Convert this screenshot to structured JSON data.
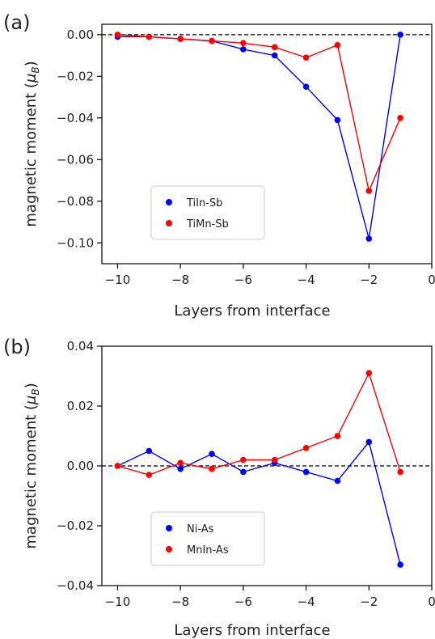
{
  "chart_data": [
    {
      "type": "line",
      "panel_label": "(a)",
      "xlabel": "Layers from interface",
      "ylabel": "magnetic moment (",
      "ylabel_symbol": "μ",
      "ylabel_subscript": "B",
      "ylabel_close": ")",
      "xlim": [
        -10.5,
        0
      ],
      "ylim": [
        -0.11,
        0.005
      ],
      "xticks": [
        -10,
        -8,
        -6,
        -4,
        -2,
        0
      ],
      "xtick_labels": [
        "−10",
        "−8",
        "−6",
        "−4",
        "−2",
        "0"
      ],
      "yticks": [
        0.0,
        -0.02,
        -0.04,
        -0.06,
        -0.08,
        -0.1
      ],
      "ytick_labels": [
        "0.00",
        "−0.02",
        "−0.04",
        "−0.06",
        "−0.08",
        "−0.10"
      ],
      "reference_line": 0,
      "legend_position": "lower-left",
      "series": [
        {
          "name": "TiIn-Sb",
          "color": "#0000ff",
          "x": [
            -10,
            -9,
            -8,
            -7,
            -6,
            -5,
            -4,
            -3,
            -2,
            -1
          ],
          "y": [
            -0.001,
            -0.001,
            -0.002,
            -0.003,
            -0.007,
            -0.01,
            -0.025,
            -0.041,
            -0.098,
            0.0
          ]
        },
        {
          "name": "TiMn-Sb",
          "color": "#ff0000",
          "x": [
            -10,
            -9,
            -8,
            -7,
            -6,
            -5,
            -4,
            -3,
            -2,
            -1
          ],
          "y": [
            0.0,
            -0.001,
            -0.002,
            -0.003,
            -0.004,
            -0.006,
            -0.011,
            -0.005,
            -0.075,
            -0.04
          ]
        }
      ]
    },
    {
      "type": "line",
      "panel_label": "(b)",
      "xlabel": "Layers from interface",
      "ylabel": "magnetic moment (",
      "ylabel_symbol": "μ",
      "ylabel_subscript": "B",
      "ylabel_close": ")",
      "xlim": [
        -10.5,
        0
      ],
      "ylim": [
        -0.04,
        0.04
      ],
      "xticks": [
        -10,
        -8,
        -6,
        -4,
        -2,
        0
      ],
      "xtick_labels": [
        "−10",
        "−8",
        "−6",
        "−4",
        "−2",
        "0"
      ],
      "yticks": [
        0.04,
        0.02,
        0.0,
        -0.02,
        -0.04
      ],
      "ytick_labels": [
        "0.04",
        "0.02",
        "0.00",
        "−0.02",
        "−0.04"
      ],
      "reference_line": 0,
      "legend_position": "lower-left",
      "series": [
        {
          "name": "Ni-As",
          "color": "#0000ff",
          "x": [
            -10,
            -9,
            -8,
            -7,
            -6,
            -5,
            -4,
            -3,
            -2,
            -1
          ],
          "y": [
            0.0,
            0.005,
            -0.001,
            0.004,
            -0.002,
            0.001,
            -0.002,
            -0.005,
            0.008,
            -0.033
          ]
        },
        {
          "name": "MnIn-As",
          "color": "#ff0000",
          "x": [
            -10,
            -9,
            -8,
            -7,
            -6,
            -5,
            -4,
            -3,
            -2,
            -1
          ],
          "y": [
            0.0,
            -0.003,
            0.001,
            -0.001,
            0.002,
            0.002,
            0.006,
            0.01,
            0.031,
            -0.002
          ]
        }
      ]
    }
  ]
}
